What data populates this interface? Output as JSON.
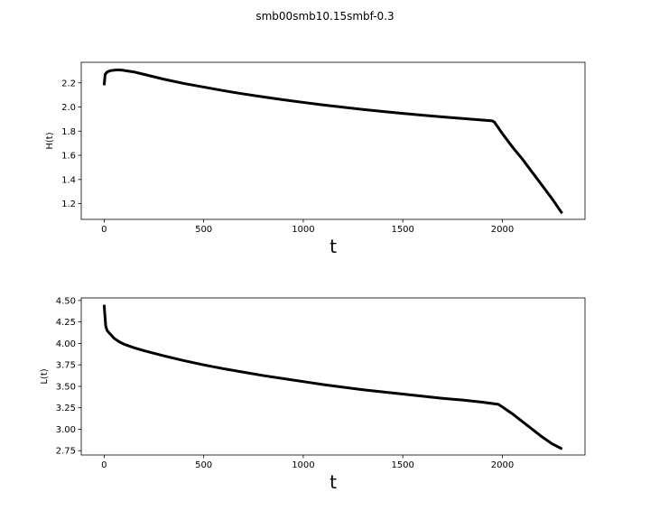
{
  "figure_title": "smb00smb10.15smbf-0.3",
  "chart_data": [
    {
      "type": "line",
      "title": "",
      "xlabel": "t",
      "ylabel": "H(t)",
      "xlim": [
        -115,
        2415
      ],
      "ylim": [
        1.07,
        2.37
      ],
      "xticks": [
        0,
        500,
        1000,
        1500,
        2000
      ],
      "xtick_labels": [
        "0",
        "500",
        "1000",
        "1500",
        "2000"
      ],
      "yticks": [
        1.2,
        1.4,
        1.6,
        1.8,
        2.0,
        2.2
      ],
      "ytick_labels": [
        "1.2",
        "1.4",
        "1.6",
        "1.8",
        "2.0",
        "2.2"
      ],
      "series": [
        {
          "name": "H(t)",
          "x": [
            0,
            5,
            15,
            30,
            50,
            70,
            90,
            110,
            150,
            200,
            300,
            400,
            500,
            600,
            700,
            800,
            900,
            1000,
            1100,
            1200,
            1300,
            1400,
            1500,
            1600,
            1700,
            1800,
            1900,
            1950,
            1960,
            2000,
            2050,
            2100,
            2150,
            2200,
            2250,
            2300
          ],
          "y": [
            2.18,
            2.27,
            2.29,
            2.3,
            2.305,
            2.307,
            2.305,
            2.3,
            2.29,
            2.27,
            2.23,
            2.195,
            2.165,
            2.135,
            2.108,
            2.083,
            2.06,
            2.038,
            2.017,
            1.998,
            1.98,
            1.963,
            1.947,
            1.932,
            1.918,
            1.905,
            1.892,
            1.885,
            1.875,
            1.78,
            1.67,
            1.57,
            1.46,
            1.35,
            1.24,
            1.12
          ]
        }
      ]
    },
    {
      "type": "line",
      "title": "",
      "xlabel": "t",
      "ylabel": "L(t)",
      "xlim": [
        -115,
        2415
      ],
      "ylim": [
        2.7,
        4.53
      ],
      "xticks": [
        0,
        500,
        1000,
        1500,
        2000
      ],
      "xtick_labels": [
        "0",
        "500",
        "1000",
        "1500",
        "2000"
      ],
      "yticks": [
        2.75,
        3.0,
        3.25,
        3.5,
        3.75,
        4.0,
        4.25,
        4.5
      ],
      "ytick_labels": [
        "2.75",
        "3.00",
        "3.25",
        "3.50",
        "3.75",
        "4.00",
        "4.25",
        "4.50"
      ],
      "series": [
        {
          "name": "L(t)",
          "x": [
            0,
            3,
            8,
            15,
            30,
            50,
            75,
            100,
            150,
            200,
            300,
            400,
            500,
            600,
            700,
            800,
            900,
            1000,
            1100,
            1200,
            1300,
            1400,
            1500,
            1600,
            1700,
            1800,
            1900,
            1950,
            1980,
            2000,
            2050,
            2100,
            2150,
            2200,
            2250,
            2300
          ],
          "y": [
            4.45,
            4.35,
            4.2,
            4.15,
            4.11,
            4.06,
            4.02,
            3.99,
            3.95,
            3.915,
            3.855,
            3.8,
            3.75,
            3.705,
            3.665,
            3.625,
            3.59,
            3.555,
            3.52,
            3.49,
            3.46,
            3.435,
            3.41,
            3.385,
            3.36,
            3.34,
            3.315,
            3.3,
            3.29,
            3.26,
            3.18,
            3.09,
            3.0,
            2.91,
            2.83,
            2.77
          ]
        }
      ]
    }
  ]
}
